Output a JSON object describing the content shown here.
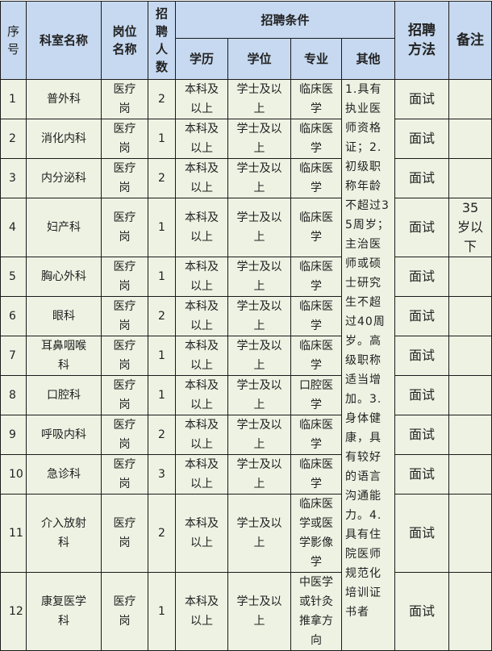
{
  "headers": {
    "seq": "序号",
    "dept": "科室名称",
    "post": "岗位名称",
    "count": "招聘人数",
    "conditions": "招聘条件",
    "edu": "学历",
    "degree": "学位",
    "major": "专业",
    "other": "其他",
    "method": "招聘方法",
    "remark": "备注"
  },
  "other_requirements": "1.具有执业医师资格证；2.初级职称年龄不超过35周岁；主治医师或硕士研究生不超过40周岁。高级职称适当增加。3.身体健康，具有较好的语言沟通能力。4.具有住院医师规范化培训证书者",
  "rows": [
    {
      "seq": "1",
      "dept": "普外科",
      "post": "医疗岗",
      "count": "2",
      "edu": "本科及以上",
      "degree": "学士及以上",
      "major": "临床医学",
      "method": "面试",
      "remark": ""
    },
    {
      "seq": "2",
      "dept": "消化内科",
      "post": "医疗岗",
      "count": "1",
      "edu": "本科及以上",
      "degree": "学士及以上",
      "major": "临床医学",
      "method": "面试",
      "remark": ""
    },
    {
      "seq": "3",
      "dept": "内分泌科",
      "post": "医疗岗",
      "count": "2",
      "edu": "本科及以上",
      "degree": "学士及以上",
      "major": "临床医学",
      "method": "面试",
      "remark": ""
    },
    {
      "seq": "4",
      "dept": "妇产科",
      "post": "医疗岗",
      "count": "1",
      "edu": "本科及以上",
      "degree": "学士及以上",
      "major": "临床医学",
      "method": "面试",
      "remark": "35岁以下"
    },
    {
      "seq": "5",
      "dept": "胸心外科",
      "post": "医疗岗",
      "count": "1",
      "edu": "本科及以上",
      "degree": "学士及以上",
      "major": "临床医学",
      "method": "面试",
      "remark": ""
    },
    {
      "seq": "6",
      "dept": "眼科",
      "post": "医疗岗",
      "count": "2",
      "edu": "本科及以上",
      "degree": "学士及以上",
      "major": "临床医学",
      "method": "面试",
      "remark": ""
    },
    {
      "seq": "7",
      "dept": "耳鼻咽喉科",
      "post": "医疗岗",
      "count": "1",
      "edu": "本科及以上",
      "degree": "学士及以上",
      "major": "临床医学",
      "method": "面试",
      "remark": ""
    },
    {
      "seq": "8",
      "dept": "口腔科",
      "post": "医疗岗",
      "count": "1",
      "edu": "本科及以上",
      "degree": "学士及以上",
      "major": "口腔医学",
      "method": "面试",
      "remark": ""
    },
    {
      "seq": "9",
      "dept": "呼吸内科",
      "post": "医疗岗",
      "count": "2",
      "edu": "本科及以上",
      "degree": "学士及以上",
      "major": "临床医学",
      "method": "面试",
      "remark": ""
    },
    {
      "seq": "10",
      "dept": "急诊科",
      "post": "医疗岗",
      "count": "3",
      "edu": "本科及以上",
      "degree": "学士及以上",
      "major": "临床医学",
      "method": "面试",
      "remark": ""
    },
    {
      "seq": "11",
      "dept": "介入放射科",
      "post": "医疗岗",
      "count": "2",
      "edu": "本科及以上",
      "degree": "学士及以上",
      "major": "临床医学或医学影像学",
      "method": "面试",
      "remark": ""
    },
    {
      "seq": "12",
      "dept": "康复医学科",
      "post": "医疗岗",
      "count": "1",
      "edu": "本科及以上",
      "degree": "学士及以上",
      "major": "中医学或针灸推拿方向",
      "method": "面试",
      "remark": ""
    }
  ]
}
